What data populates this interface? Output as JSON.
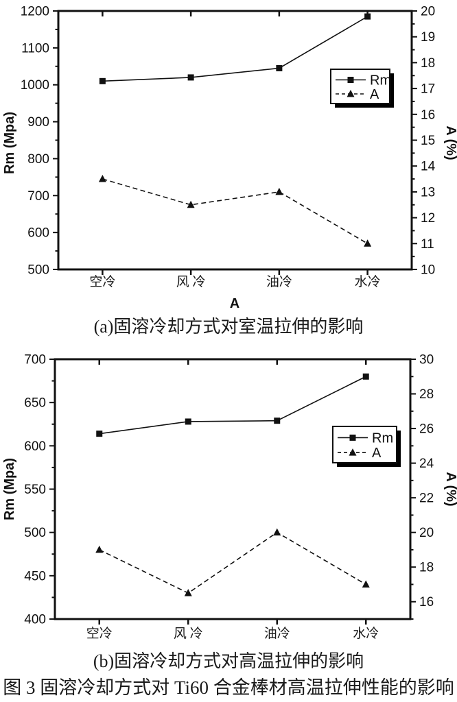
{
  "figure_caption": "图 3 固溶冷却方式对 Ti60 合金棒材高温拉伸性能的影响",
  "colors": {
    "ink": "#111111",
    "background": "#ffffff"
  },
  "chart_data": [
    {
      "type": "line",
      "caption": "(a)固溶冷却方式对室温拉伸的影响",
      "categories": [
        "空冷",
        "风 冷",
        "油冷",
        "水冷"
      ],
      "xlabel": "A",
      "left_axis": {
        "label": "Rm (Mpa)",
        "min": 500,
        "max": 1200,
        "major_step": 100,
        "tick_start": 500
      },
      "right_axis": {
        "label": "A (%)",
        "min": 10,
        "max": 20,
        "major_step": 1,
        "tick_start": 10
      },
      "legend": {
        "position": "right-middle",
        "entries": [
          "Rm",
          "A"
        ]
      },
      "grid": false,
      "series": [
        {
          "name": "Rm",
          "axis": "left",
          "line": "solid",
          "marker": "square",
          "values": [
            1010,
            1020,
            1045,
            1185
          ]
        },
        {
          "name": "A",
          "axis": "right",
          "line": "dashed",
          "marker": "triangle",
          "values": [
            13.5,
            12.5,
            13.0,
            11.0
          ]
        }
      ]
    },
    {
      "type": "line",
      "caption": "(b)固溶冷却方式对高温拉伸的影响",
      "categories": [
        "空冷",
        "风 冷",
        "油冷",
        "水冷"
      ],
      "xlabel": "",
      "left_axis": {
        "label": "Rm (Mpa)",
        "min": 400,
        "max": 700,
        "major_step": 50,
        "tick_start": 400
      },
      "right_axis": {
        "label": "A (%)",
        "min": 15,
        "max": 30,
        "major_step": 2,
        "tick_start": 16
      },
      "legend": {
        "position": "right-middle",
        "entries": [
          "Rm",
          "A"
        ]
      },
      "grid": false,
      "series": [
        {
          "name": "Rm",
          "axis": "left",
          "line": "solid",
          "marker": "square",
          "values": [
            614,
            628,
            629,
            680
          ]
        },
        {
          "name": "A",
          "axis": "right",
          "line": "dashed",
          "marker": "triangle",
          "values": [
            19.0,
            16.5,
            20.0,
            17.0
          ]
        }
      ]
    }
  ]
}
